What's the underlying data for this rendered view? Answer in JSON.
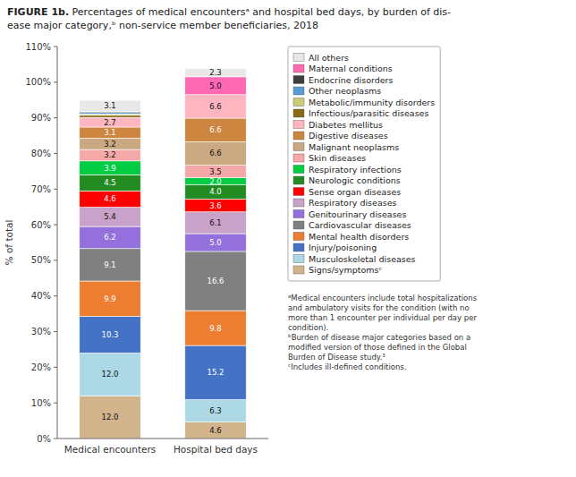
{
  "chart_data": {
    "type": "bar",
    "stacked": true,
    "title": "FIGURE 1b.",
    "subtitle": " Percentages of medical encountersᵃ and hospital bed days, by burden of dis-\nease major category,ᵇ non-service member beneficiaries, 2018",
    "categories": [
      "Medical encounters",
      "Hospital bed days"
    ],
    "series": [
      {
        "name": "Signs/symptomsᶜ",
        "color": "#D2B48C",
        "values": [
          12.0,
          4.6
        ],
        "value_labels": [
          "12.0",
          "4.6"
        ]
      },
      {
        "name": "Musculoskeletal diseases",
        "color": "#ADD8E6",
        "values": [
          12.0,
          6.3
        ],
        "value_labels": [
          "12.0",
          "6.3"
        ]
      },
      {
        "name": "Injury/poisoning",
        "color": "#4472C4",
        "values": [
          10.3,
          15.2
        ],
        "value_labels": [
          "10.3",
          "15.2"
        ]
      },
      {
        "name": "Mental health disorders",
        "color": "#ED7D31",
        "values": [
          9.9,
          9.8
        ],
        "value_labels": [
          "9.9",
          "9.8"
        ]
      },
      {
        "name": "Cardiovascular diseases",
        "color": "#808080",
        "values": [
          9.1,
          16.6
        ],
        "value_labels": [
          "9.1",
          "16.6"
        ]
      },
      {
        "name": "Genitourinary diseases",
        "color": "#9370DB",
        "values": [
          6.2,
          5.0
        ],
        "value_labels": [
          "6.2",
          "5.0"
        ]
      },
      {
        "name": "Respiratory diseases",
        "color": "#C8A2C8",
        "values": [
          5.4,
          6.1
        ],
        "value_labels": [
          "5.4",
          "6.1"
        ]
      },
      {
        "name": "Sense organ diseases",
        "color": "#FF0000",
        "values": [
          4.6,
          3.6
        ],
        "value_labels": [
          "4.6",
          "3.6"
        ]
      },
      {
        "name": "Neurologic conditions",
        "color": "#228B22",
        "values": [
          4.5,
          4.0
        ],
        "value_labels": [
          "4.5",
          "4.0"
        ]
      },
      {
        "name": "Respiratory infections",
        "color": "#00CC44",
        "values": [
          3.9,
          2.0
        ],
        "value_labels": [
          "3.9",
          "2.0"
        ]
      },
      {
        "name": "Skin diseases",
        "color": "#F4A8A8",
        "values": [
          3.2,
          3.5
        ],
        "value_labels": [
          "3.2",
          "3.5"
        ]
      },
      {
        "name": "Malignant neoplasms",
        "color": "#C9A882",
        "values": [
          3.2,
          6.6
        ],
        "value_labels": [
          "3.2",
          "6.6"
        ]
      },
      {
        "name": "Digestive diseases",
        "color": "#CD853F",
        "values": [
          3.1,
          6.6
        ],
        "value_labels": [
          "3.1",
          "6.6"
        ]
      },
      {
        "name": "Diabetes mellitus",
        "color": "#FFB6C1",
        "values": [
          2.7,
          6.6
        ],
        "value_labels": [
          "2.7",
          "6.6"
        ]
      },
      {
        "name": "Infectious/parasitic diseases",
        "color": "#8B6914",
        "values": [
          0.6,
          0.0
        ],
        "value_labels": [
          null,
          null
        ]
      },
      {
        "name": "Metabolic/immunity disorders",
        "color": "#CCCC77",
        "values": [
          0.4,
          0.0
        ],
        "value_labels": [
          null,
          null
        ]
      },
      {
        "name": "Other neoplasms",
        "color": "#5B9BD5",
        "values": [
          0.4,
          0.0
        ],
        "value_labels": [
          null,
          null
        ]
      },
      {
        "name": "Endocrine disorders",
        "color": "#3D3D3D",
        "values": [
          0.3,
          0.0
        ],
        "value_labels": [
          null,
          null
        ]
      },
      {
        "name": "Maternal conditions",
        "color": "#FF69B4",
        "values": [
          0.0,
          5.0
        ],
        "value_labels": [
          null,
          "5.0"
        ]
      },
      {
        "name": "All others",
        "color": "#E8E8E8",
        "values": [
          3.1,
          2.3
        ],
        "value_labels": [
          "3.1",
          "2.3"
        ]
      }
    ],
    "ylabel": "% of total",
    "ylim": [
      0,
      110
    ],
    "yticks": [
      {
        "value": 0,
        "label": "0%"
      },
      {
        "value": 10,
        "label": "10%"
      },
      {
        "value": 20,
        "label": "20%"
      },
      {
        "value": 30,
        "label": "30%"
      },
      {
        "value": 40,
        "label": "40%"
      },
      {
        "value": 50,
        "label": "50%"
      },
      {
        "value": 60,
        "label": "60%"
      },
      {
        "value": 70,
        "label": "70%"
      },
      {
        "value": 80,
        "label": "80%"
      },
      {
        "value": 90,
        "label": "90%"
      },
      {
        "value": 100,
        "label": "100%"
      },
      {
        "value": 110,
        "label": "110%"
      }
    ],
    "data_labels": true,
    "legend": "right",
    "grid": false,
    "annotations": [
      "ᵃMedical encounters include total hospitalizations\nand ambulatory visits for the condition (with no\nmore than 1 encounter per individual per day per\ncondition).\nᵇBurden of disease major categories based on a\nmodified version of those defined in the Global\nBurden of Disease study.³\nᶜIncludes ill-defined conditions."
    ]
  }
}
